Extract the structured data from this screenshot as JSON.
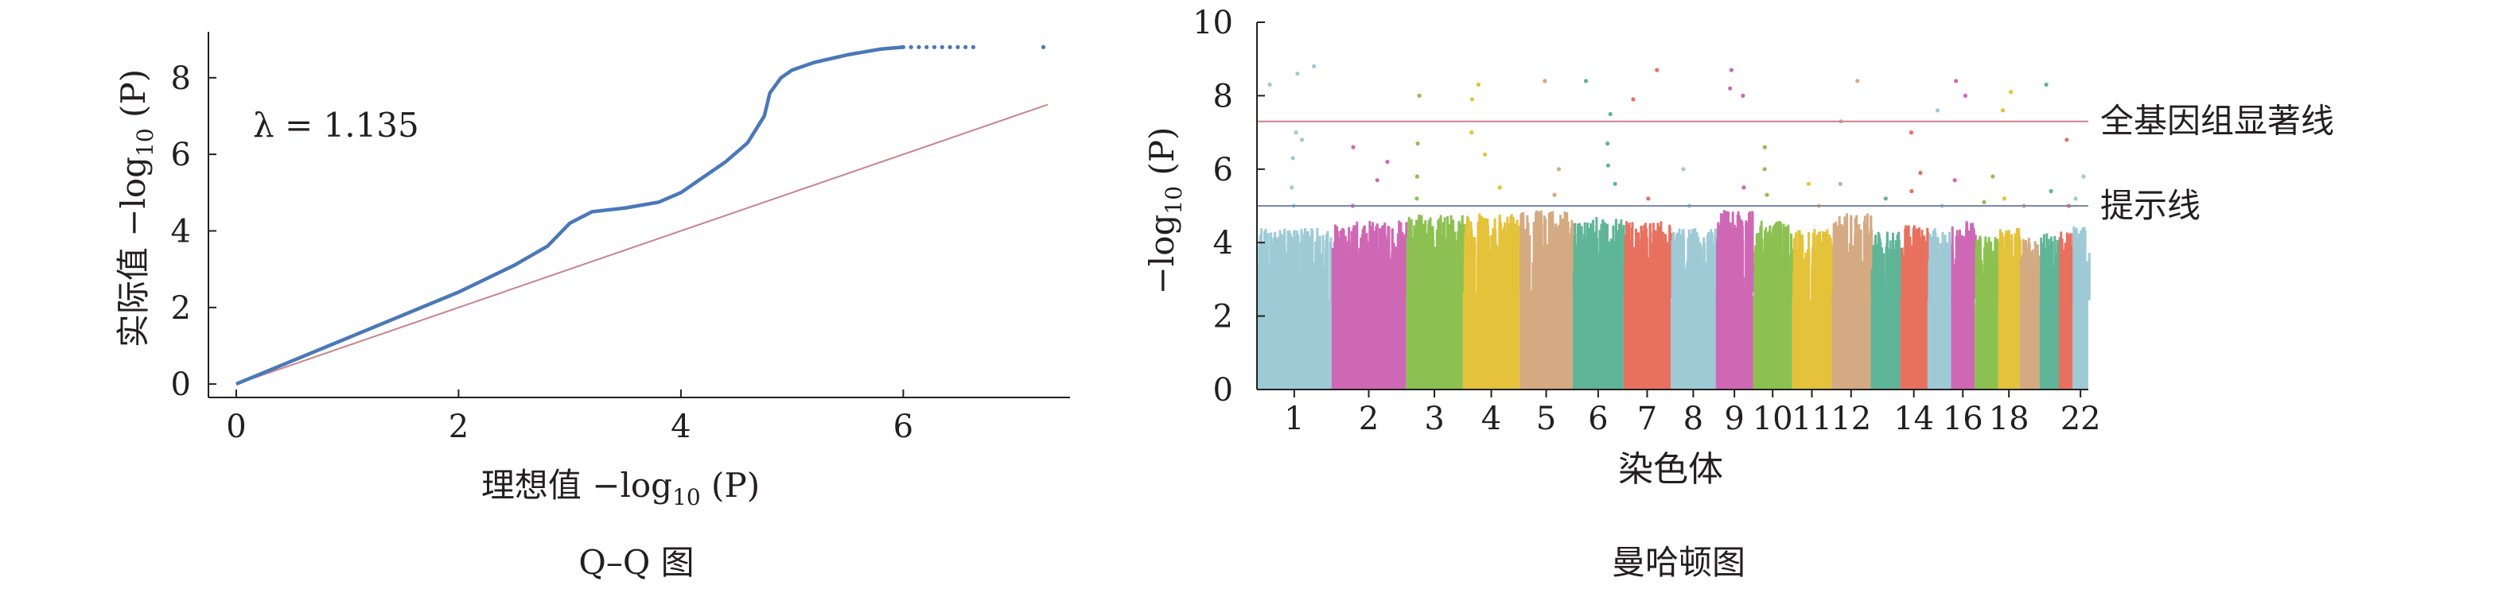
{
  "panels": {
    "qq": {
      "caption": "Q–Q 图"
    },
    "manhattan": {
      "caption": "曼哈顿图"
    }
  },
  "chart_data": [
    {
      "type": "scatter",
      "panel": "qq",
      "xlabel": {
        "prefix": "理想值 −log",
        "sub": "10",
        "suffix": " (P)"
      },
      "ylabel": {
        "prefix": "实际值 −log",
        "sub": "10",
        "suffix": " (P)"
      },
      "annotation": "λ = 1.135",
      "xlim": [
        -0.25,
        7.5
      ],
      "ylim": [
        -0.35,
        9.2
      ],
      "xticks": [
        0,
        2,
        4,
        6
      ],
      "yticks": [
        0,
        2,
        4,
        6,
        8
      ],
      "colors": {
        "observed": "#4a78b8",
        "expected": "#c9848c",
        "axis": "#231f20"
      },
      "expected_line": {
        "slope": 1.0,
        "x_range": [
          0,
          7.3
        ]
      },
      "observed": {
        "x": [
          0.0,
          0.5,
          1.0,
          1.5,
          2.0,
          2.5,
          2.8,
          3.0,
          3.2,
          3.5,
          3.8,
          4.0,
          4.2,
          4.4,
          4.6,
          4.75,
          4.8,
          4.9,
          5.0,
          5.2,
          5.5,
          5.8,
          6.0,
          6.3,
          6.6,
          7.3
        ],
        "y": [
          0.0,
          0.6,
          1.2,
          1.8,
          2.4,
          3.1,
          3.6,
          4.2,
          4.5,
          4.6,
          4.75,
          5.0,
          5.4,
          5.8,
          6.3,
          7.0,
          7.6,
          8.0,
          8.2,
          8.4,
          8.6,
          8.75,
          8.8,
          8.8,
          8.8,
          8.8
        ]
      }
    },
    {
      "type": "scatter",
      "panel": "manhattan",
      "xlabel": "染色体",
      "ylabel": {
        "prefix": "−log",
        "sub": "10",
        "suffix": " (P)"
      },
      "ylim": [
        0,
        10
      ],
      "yticks": [
        0,
        2,
        4,
        6,
        8,
        10
      ],
      "thresholds": [
        {
          "label": "全基因组显著线",
          "value": 7.3,
          "color": "#c9848c"
        },
        {
          "label": "提示线",
          "value": 5.0,
          "color": "#7a86b8"
        }
      ],
      "chromosome_tick_labels": [
        "1",
        "2",
        "3",
        "4",
        "5",
        "6",
        "7",
        "8",
        "9",
        "10",
        "11",
        "12",
        "14",
        "16",
        "18",
        "22"
      ],
      "chromosomes": [
        {
          "chr": "1",
          "color": "#9ecad6",
          "bulk_max": 4.4,
          "outliers": [
            5.0,
            5.5,
            6.3,
            6.8,
            7.0,
            8.3,
            8.6,
            8.8
          ]
        },
        {
          "chr": "2",
          "color": "#cf68b4",
          "bulk_max": 4.6,
          "outliers": [
            5.0,
            5.7,
            6.2,
            6.6
          ]
        },
        {
          "chr": "3",
          "color": "#8cc152",
          "bulk_max": 4.8,
          "outliers": [
            5.2,
            5.8,
            6.7,
            8.0
          ]
        },
        {
          "chr": "4",
          "color": "#e4c23a",
          "bulk_max": 4.8,
          "outliers": [
            5.5,
            6.4,
            7.0,
            7.9,
            8.3
          ]
        },
        {
          "chr": "5",
          "color": "#d4aa82",
          "bulk_max": 4.9,
          "outliers": [
            5.3,
            6.0,
            8.4
          ]
        },
        {
          "chr": "6",
          "color": "#5fb597",
          "bulk_max": 4.7,
          "outliers": [
            5.6,
            6.1,
            6.7,
            7.5,
            8.4
          ]
        },
        {
          "chr": "7",
          "color": "#e8705f",
          "bulk_max": 4.6,
          "outliers": [
            5.2,
            7.9,
            8.7
          ]
        },
        {
          "chr": "8",
          "color": "#9ecad6",
          "bulk_max": 4.4,
          "outliers": [
            5.0,
            6.0
          ]
        },
        {
          "chr": "9",
          "color": "#cf68b4",
          "bulk_max": 4.9,
          "outliers": [
            5.5,
            8.0,
            8.2,
            8.7
          ]
        },
        {
          "chr": "10",
          "color": "#8cc152",
          "bulk_max": 4.6,
          "outliers": [
            5.3,
            6.0,
            6.6
          ]
        },
        {
          "chr": "11",
          "color": "#e4c23a",
          "bulk_max": 4.4,
          "outliers": [
            5.0,
            5.6
          ]
        },
        {
          "chr": "12",
          "color": "#d4aa82",
          "bulk_max": 4.8,
          "outliers": [
            5.6,
            7.3,
            8.4
          ]
        },
        {
          "chr": "13",
          "color": "#5fb597",
          "bulk_max": 4.3,
          "outliers": [
            5.2
          ]
        },
        {
          "chr": "14",
          "color": "#e8705f",
          "bulk_max": 4.5,
          "outliers": [
            5.4,
            5.9,
            7.0
          ]
        },
        {
          "chr": "15",
          "color": "#9ecad6",
          "bulk_max": 4.4,
          "outliers": [
            5.0,
            7.6
          ]
        },
        {
          "chr": "16",
          "color": "#cf68b4",
          "bulk_max": 4.6,
          "outliers": [
            5.7,
            8.0,
            8.4
          ]
        },
        {
          "chr": "17",
          "color": "#8cc152",
          "bulk_max": 4.2,
          "outliers": [
            5.1,
            5.8
          ]
        },
        {
          "chr": "18",
          "color": "#e4c23a",
          "bulk_max": 4.4,
          "outliers": [
            5.2,
            7.6,
            8.1
          ]
        },
        {
          "chr": "19",
          "color": "#d4aa82",
          "bulk_max": 4.2,
          "outliers": [
            5.0
          ]
        },
        {
          "chr": "20",
          "color": "#5fb597",
          "bulk_max": 4.3,
          "outliers": [
            5.4,
            8.3
          ]
        },
        {
          "chr": "21",
          "color": "#e8705f",
          "bulk_max": 4.3,
          "outliers": [
            5.0,
            6.8
          ]
        },
        {
          "chr": "22",
          "color": "#9ecad6",
          "bulk_max": 4.5,
          "outliers": [
            5.2,
            5.8
          ]
        }
      ]
    }
  ]
}
